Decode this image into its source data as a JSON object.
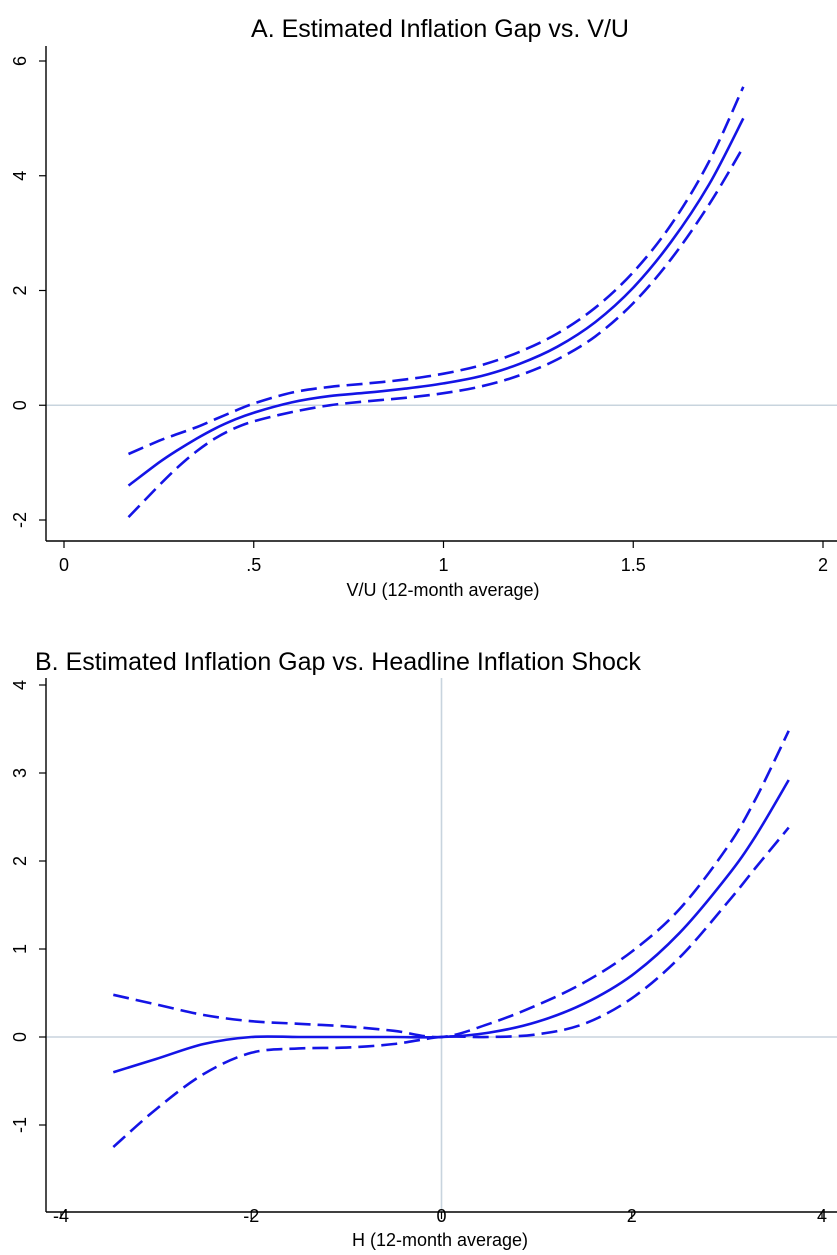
{
  "chart_data": [
    {
      "type": "line",
      "title": "A. Estimated Inflation Gap vs. V/U",
      "xlabel": "V/U (12-month average)",
      "ylabel": "",
      "xlim": [
        0,
        2
      ],
      "ylim": [
        -2,
        6
      ],
      "xticks": [
        0,
        0.5,
        1,
        1.5,
        2
      ],
      "xtick_labels": [
        "0",
        ".5",
        "1",
        "1.5",
        "2"
      ],
      "yticks": [
        -2,
        0,
        2,
        4,
        6
      ],
      "ytick_labels": [
        "-2",
        "0",
        "2",
        "4",
        "6"
      ],
      "reference_lines": {
        "y0": true,
        "x0": false
      },
      "grid": false,
      "colors": {
        "series": "#1414e6",
        "refline": "#c8d4de"
      },
      "series": [
        {
          "style": "solid",
          "x": [
            0.17,
            0.25,
            0.3,
            0.35,
            0.4,
            0.45,
            0.5,
            0.6,
            0.7,
            0.8,
            0.9,
            1.0,
            1.1,
            1.2,
            1.3,
            1.4,
            1.5,
            1.6,
            1.7,
            1.79
          ],
          "y": [
            -1.4,
            -1.0,
            -0.78,
            -0.58,
            -0.4,
            -0.25,
            -0.13,
            0.05,
            0.16,
            0.22,
            0.29,
            0.38,
            0.51,
            0.72,
            1.02,
            1.45,
            2.05,
            2.85,
            3.85,
            5.0
          ]
        },
        {
          "style": "dashed",
          "x": [
            0.17,
            0.25,
            0.3,
            0.35,
            0.4,
            0.45,
            0.5,
            0.6,
            0.7,
            0.8,
            0.9,
            1.0,
            1.1,
            1.2,
            1.3,
            1.4,
            1.5,
            1.6,
            1.7,
            1.79
          ],
          "y": [
            -0.85,
            -0.62,
            -0.5,
            -0.38,
            -0.24,
            -0.1,
            0.03,
            0.22,
            0.32,
            0.38,
            0.45,
            0.55,
            0.7,
            0.93,
            1.25,
            1.7,
            2.32,
            3.15,
            4.25,
            5.55
          ]
        },
        {
          "style": "dashed",
          "x": [
            0.17,
            0.25,
            0.3,
            0.35,
            0.4,
            0.45,
            0.5,
            0.6,
            0.7,
            0.8,
            0.9,
            1.0,
            1.1,
            1.2,
            1.3,
            1.4,
            1.5,
            1.6,
            1.7,
            1.79
          ],
          "y": [
            -1.95,
            -1.4,
            -1.08,
            -0.8,
            -0.57,
            -0.4,
            -0.28,
            -0.12,
            0.0,
            0.07,
            0.13,
            0.21,
            0.33,
            0.52,
            0.8,
            1.2,
            1.78,
            2.55,
            3.5,
            4.5
          ]
        }
      ]
    },
    {
      "type": "line",
      "title": "B. Estimated Inflation Gap vs. Headline Inflation Shock",
      "xlabel": "H (12-month average)",
      "ylabel": "",
      "xlim": [
        -4,
        4
      ],
      "ylim": [
        -1,
        4
      ],
      "xticks": [
        -4,
        -2,
        0,
        2,
        4
      ],
      "xtick_labels": [
        "-4",
        "-2",
        "0",
        "2",
        "4"
      ],
      "yticks": [
        -1,
        0,
        1,
        2,
        3,
        4
      ],
      "ytick_labels": [
        "-1",
        "0",
        "1",
        "2",
        "3",
        "4"
      ],
      "reference_lines": {
        "y0": true,
        "x0": true
      },
      "grid": false,
      "colors": {
        "series": "#1414e6",
        "refline": "#c8d4de"
      },
      "series": [
        {
          "style": "solid",
          "x": [
            -3.45,
            -3.0,
            -2.5,
            -2.0,
            -1.5,
            -1.0,
            -0.5,
            0,
            0.5,
            1.0,
            1.5,
            2.0,
            2.5,
            3.0,
            3.3,
            3.65
          ],
          "y": [
            -0.4,
            -0.25,
            -0.08,
            0.0,
            0.0,
            0.0,
            0.0,
            0.0,
            0.05,
            0.17,
            0.38,
            0.7,
            1.18,
            1.82,
            2.28,
            2.92
          ]
        },
        {
          "style": "dashed",
          "x": [
            -3.45,
            -3.0,
            -2.5,
            -2.0,
            -1.5,
            -1.0,
            -0.5,
            0,
            0.5,
            1.0,
            1.5,
            2.0,
            2.5,
            3.0,
            3.3,
            3.65
          ],
          "y": [
            0.48,
            0.37,
            0.25,
            0.18,
            0.15,
            0.12,
            0.07,
            0.0,
            0.15,
            0.36,
            0.62,
            0.97,
            1.45,
            2.15,
            2.7,
            3.48
          ]
        },
        {
          "style": "dashed",
          "x": [
            -3.45,
            -3.0,
            -2.5,
            -2.0,
            -1.5,
            -1.0,
            -0.5,
            0,
            0.5,
            1.0,
            1.5,
            2.0,
            2.5,
            3.0,
            3.3,
            3.65
          ],
          "y": [
            -1.25,
            -0.82,
            -0.42,
            -0.18,
            -0.13,
            -0.12,
            -0.08,
            0.0,
            0.0,
            0.03,
            0.15,
            0.44,
            0.9,
            1.52,
            1.92,
            2.38
          ]
        }
      ]
    }
  ]
}
